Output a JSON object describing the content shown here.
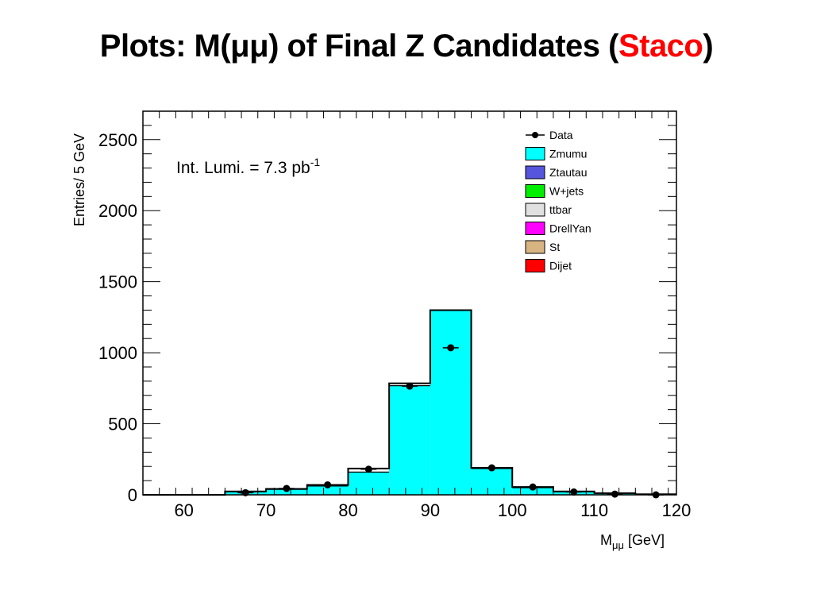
{
  "slide": {
    "title_prefix": "Plots:  M(μμ) of Final Z Candidates (",
    "title_highlight": "Staco",
    "title_suffix": ")"
  },
  "chart_data": {
    "type": "bar",
    "annotation": {
      "text": "Int. Lumi. = 7.3 pb",
      "superscript": "-1"
    },
    "xlabel": {
      "main": "M",
      "sub": "μμ",
      "unit": " [GeV]"
    },
    "ylabel": "Entries/ 5 GeV",
    "xlim": [
      55,
      120
    ],
    "ylim": [
      0,
      2700
    ],
    "xticks": [
      60,
      70,
      80,
      90,
      100,
      110,
      120
    ],
    "yticks": [
      0,
      500,
      1000,
      1500,
      2000,
      2500
    ],
    "bin_edges": [
      55,
      60,
      65,
      70,
      75,
      80,
      85,
      90,
      95,
      100,
      105,
      110,
      115,
      120
    ],
    "series": [
      {
        "name": "Zmumu",
        "color": "#00ffff",
        "values": [
          0,
          0,
          22,
          38,
          62,
          160,
          768,
          1300,
          185,
          50,
          22,
          10,
          3
        ]
      }
    ],
    "mc_total": [
      0,
      0,
      24,
      42,
      70,
      185,
      785,
      1300,
      190,
      55,
      24,
      12,
      4
    ],
    "data_points": {
      "name": "Data",
      "x": [
        67.5,
        72.5,
        77.5,
        82.5,
        87.5,
        92.5,
        97.5,
        102.5,
        107.5,
        112.5,
        117.5
      ],
      "y": [
        15,
        45,
        70,
        180,
        765,
        1035,
        190,
        55,
        20,
        5,
        0
      ]
    },
    "legend": {
      "placement": "top-right",
      "entries": [
        {
          "name": "Data",
          "kind": "marker",
          "color": "#000000"
        },
        {
          "name": "Zmumu",
          "kind": "box",
          "color": "#00ffff"
        },
        {
          "name": "Ztautau",
          "kind": "box",
          "color": "#5555dd"
        },
        {
          "name": "W+jets",
          "kind": "box",
          "color": "#00ee00"
        },
        {
          "name": "ttbar",
          "kind": "box",
          "color": "#e0e0e0"
        },
        {
          "name": "DrellYan",
          "kind": "box",
          "color": "#ff00ff"
        },
        {
          "name": "St",
          "kind": "box",
          "color": "#d8b483"
        },
        {
          "name": "Dijet",
          "kind": "box",
          "color": "#ff0000"
        }
      ]
    },
    "grid": false
  }
}
